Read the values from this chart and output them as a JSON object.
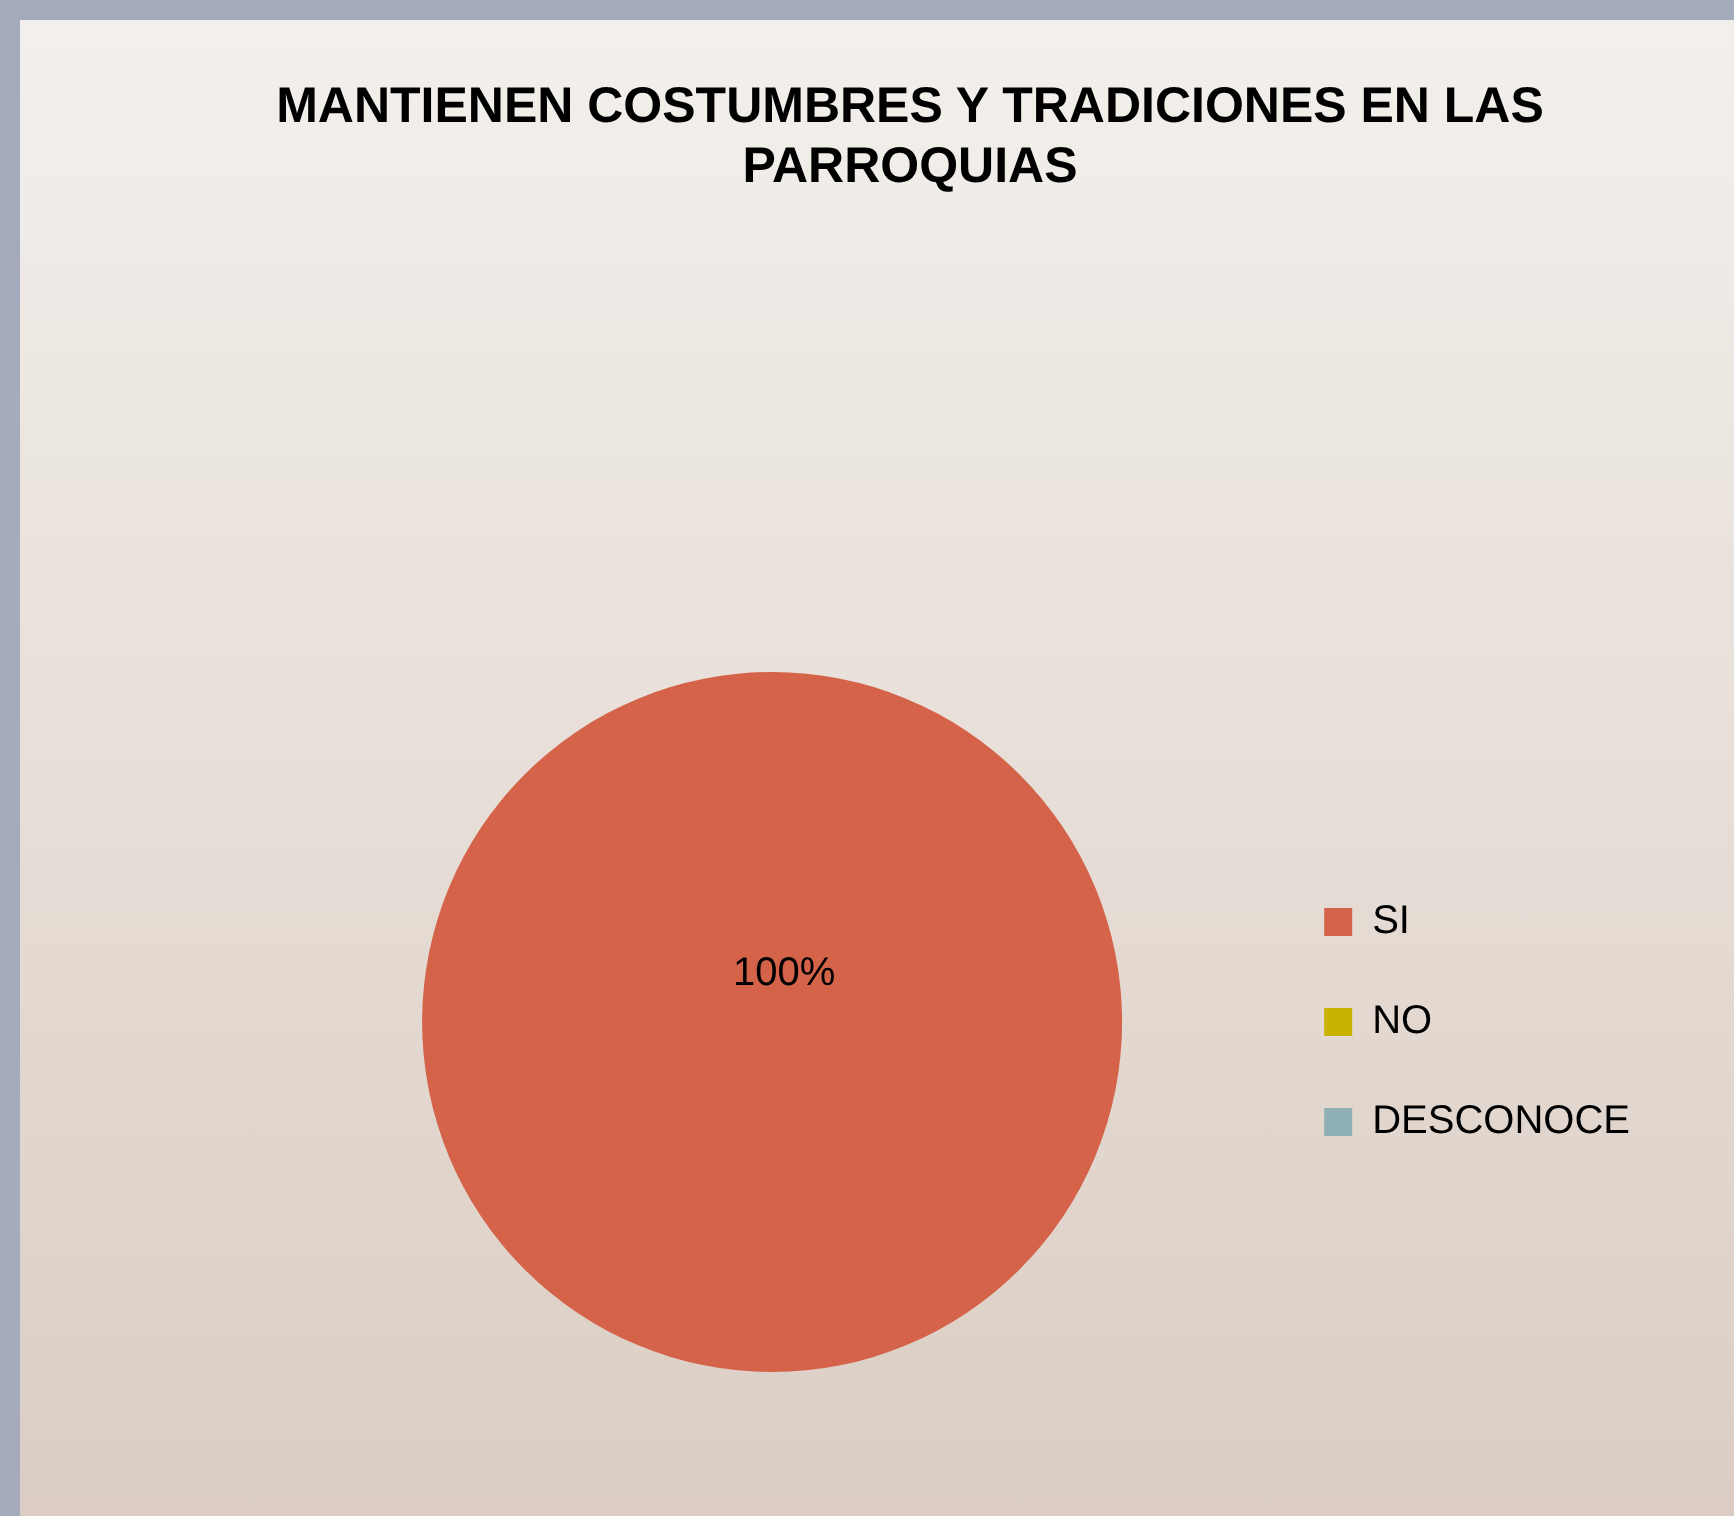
{
  "chart_data": {
    "type": "pie",
    "title": "MANTIENEN COSTUMBRES Y TRADICIONES EN LAS PARROQUIAS",
    "categories": [
      "SI",
      "NO",
      "DESCONOCE"
    ],
    "values": [
      100,
      0,
      0
    ],
    "colors": [
      "#d4634a",
      "#c8b400",
      "#8fb0b4"
    ],
    "value_labels": [
      "100%",
      null,
      null
    ],
    "legend": "right"
  }
}
